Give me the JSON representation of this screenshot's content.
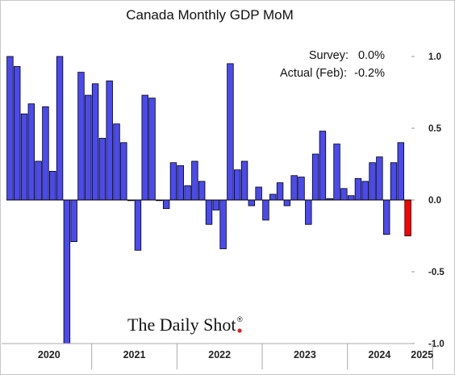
{
  "chart_data": {
    "type": "bar",
    "title": "Canada Monthly GDP MoM",
    "xlabel": "",
    "ylabel": "",
    "ylim": [
      -1.0,
      1.0
    ],
    "yticks": [
      1.0,
      0.5,
      0.0,
      -0.5,
      -1.0
    ],
    "ytick_labels": [
      "1.0",
      "0.5",
      "0.0",
      "-0.5",
      "-1.0"
    ],
    "grid": false,
    "years": [
      "2020",
      "2021",
      "2022",
      "2023",
      "2024",
      "2025"
    ],
    "start": "2020-01",
    "series": [
      {
        "color": "#4a4af0",
        "values": [
          1.0,
          0.93,
          0.6,
          0.67,
          0.27,
          0.65,
          0.2,
          1.0,
          -1.0,
          -0.29,
          0.89,
          0.73,
          0.81,
          0.43,
          0.83,
          0.53,
          0.4,
          0.0,
          -0.35,
          0.73,
          0.71,
          0.0,
          -0.06,
          0.26,
          0.24,
          0.1,
          0.27,
          0.13,
          -0.17,
          -0.07,
          -0.34,
          0.95,
          0.21,
          0.27,
          -0.04,
          0.09,
          -0.14,
          0.04,
          0.12,
          -0.04,
          0.17,
          0.16,
          -0.17,
          0.32,
          0.48,
          0.01,
          0.39,
          0.08,
          0.03,
          0.15,
          0.13,
          0.26,
          0.3,
          -0.24,
          0.26,
          0.4
        ]
      },
      {
        "color": "#ff0000",
        "values_index": [
          56
        ],
        "values": [
          -0.25
        ]
      }
    ],
    "annotations": [
      {
        "label": "Survey:",
        "value": "0.0%"
      },
      {
        "label": "Actual (Feb):",
        "value": "-0.2%"
      }
    ]
  },
  "watermark": {
    "text": "The Daily Shot",
    "mark": "®",
    "dot_color": "#e02020"
  }
}
